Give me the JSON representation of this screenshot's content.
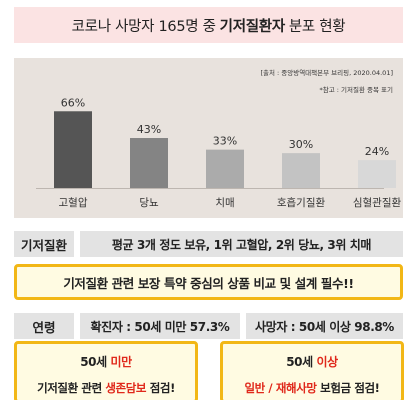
{
  "title": {
    "prefix": "코로나 사망자 165명 중",
    "emphasis": "기저질환자",
    "suffix": "분포 현황"
  },
  "source": "[출처 : 중앙방역대책본부 브리핑, 2020.04.01]",
  "note": "*참고 : 기저질환 중복 표기",
  "chart_data": {
    "type": "bar",
    "categories": [
      "고혈압",
      "당뇨",
      "치매",
      "호흡기질환",
      "심혈관질환"
    ],
    "values": [
      66,
      43,
      33,
      30,
      24
    ],
    "value_labels": [
      "66%",
      "43%",
      "33%",
      "30%",
      "24%"
    ],
    "ylim": [
      0,
      80
    ],
    "unit": "%",
    "colors": [
      "#555555",
      "#848484",
      "#ababab",
      "#c3c3c3",
      "#d8d8d8"
    ],
    "grid": false,
    "legend": "none"
  },
  "underlying": {
    "tag": "기저질환",
    "text": "평균 3개 정도 보유, 1위 고혈압,  2위 당뇨, 3위 치매"
  },
  "highlight": "기저질환 관련 보장 특약 중심의 상품 비교 및 설계 필수!!",
  "age": {
    "tag": "연령",
    "confirmed": "확진자 : 50세 미만 57.3%",
    "deaths": "사망자 : 50세 이상 98.8%"
  },
  "callouts": [
    {
      "age": "50세",
      "age_red": "미만",
      "pre": "기저질환 관련",
      "red": "생존담보",
      "post": "점검!"
    },
    {
      "age": "50세",
      "age_red": "이상",
      "pre": "",
      "red": "일반 / 재해사망",
      "post": "보험금 점검!"
    }
  ]
}
